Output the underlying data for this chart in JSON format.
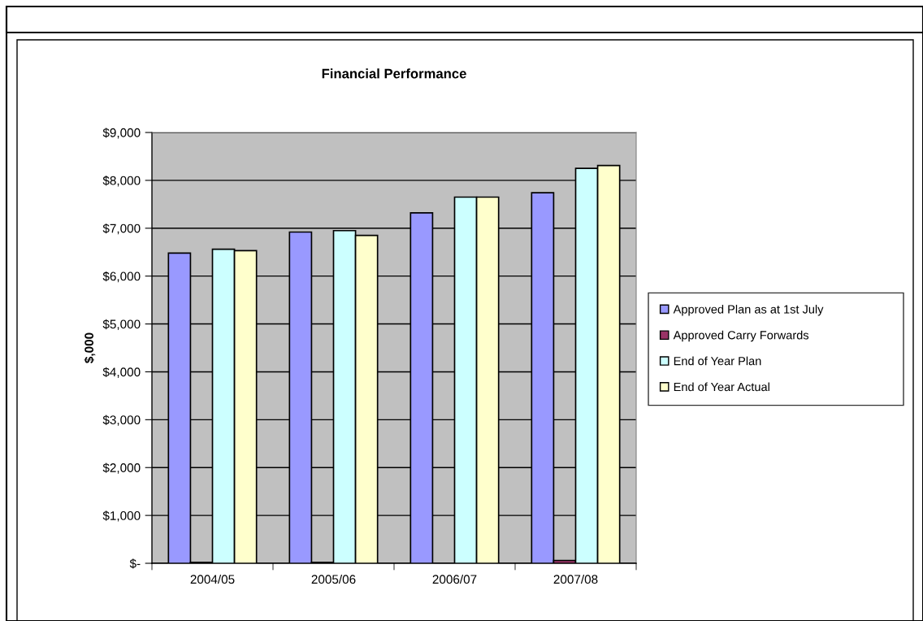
{
  "chart_data": {
    "type": "bar",
    "title": "Financial Performance",
    "ylabel": "$,000",
    "categories": [
      "2004/05",
      "2005/06",
      "2006/07",
      "2007/08"
    ],
    "series": [
      {
        "name": "Approved Plan as at 1st July",
        "color": "#9999ff",
        "values": [
          6480,
          6920,
          7320,
          7740
        ]
      },
      {
        "name": "Approved Carry Forwards",
        "color": "#993366",
        "values": [
          20,
          20,
          null,
          60
        ]
      },
      {
        "name": "End of Year Plan",
        "color": "#ccffff",
        "values": [
          6560,
          6950,
          7650,
          8250
        ]
      },
      {
        "name": "End of Year Actual",
        "color": "#ffffcc",
        "values": [
          6530,
          6850,
          7650,
          8310
        ]
      }
    ],
    "ylim": [
      0,
      9000
    ],
    "yticks": [
      {
        "value": 0,
        "label": "$-"
      },
      {
        "value": 1000,
        "label": "$1,000"
      },
      {
        "value": 2000,
        "label": "$2,000"
      },
      {
        "value": 3000,
        "label": "$3,000"
      },
      {
        "value": 4000,
        "label": "$4,000"
      },
      {
        "value": 5000,
        "label": "$5,000"
      },
      {
        "value": 6000,
        "label": "$6,000"
      },
      {
        "value": 7000,
        "label": "$7,000"
      },
      {
        "value": 8000,
        "label": "$8,000"
      },
      {
        "value": 9000,
        "label": "$9,000"
      }
    ],
    "grid": "y",
    "legend": "right"
  }
}
